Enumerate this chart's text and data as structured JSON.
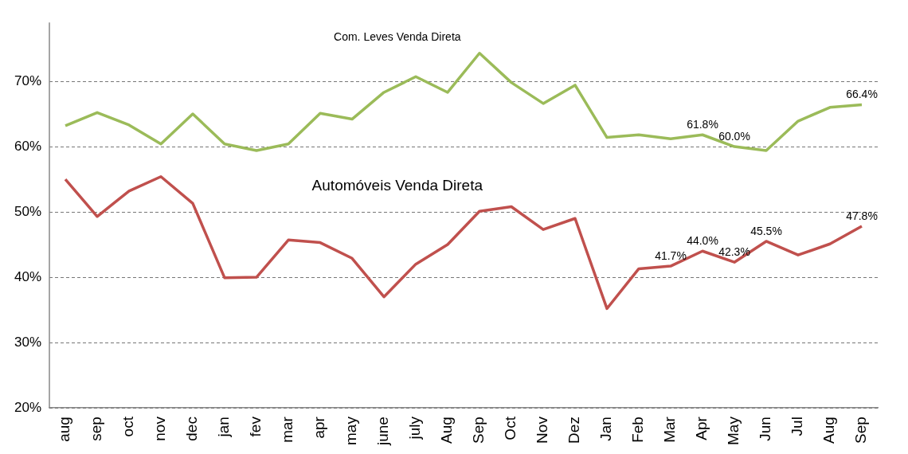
{
  "chart_data": {
    "type": "line",
    "categories": [
      "aug",
      "sep",
      "oct",
      "nov",
      "dec",
      "jan",
      "fev",
      "mar",
      "apr",
      "may",
      "june",
      "july",
      "Aug",
      "Sep",
      "Oct",
      "Nov",
      "Dez",
      "Jan",
      "Feb",
      "Mar",
      "Apr",
      "May",
      "Jun",
      "Jul",
      "Aug",
      "Sep"
    ],
    "series": [
      {
        "name": "Com. Leves Venda Direta",
        "color": "#9bbb59",
        "values": [
          63.2,
          65.2,
          63.3,
          60.4,
          65.0,
          60.4,
          59.4,
          60.4,
          65.1,
          64.2,
          68.3,
          70.7,
          68.3,
          74.3,
          69.8,
          66.6,
          69.4,
          61.4,
          61.8,
          61.2,
          61.8,
          60.0,
          59.4,
          63.9,
          66.0,
          66.4
        ],
        "value_labels": [
          null,
          null,
          null,
          null,
          null,
          null,
          null,
          null,
          null,
          null,
          null,
          null,
          null,
          null,
          null,
          null,
          null,
          null,
          null,
          null,
          "61.8%",
          "60.0%",
          null,
          null,
          null,
          "66.4%"
        ]
      },
      {
        "name": "Automóveis Venda Direta",
        "color": "#c0504d",
        "values": [
          55.0,
          49.3,
          53.2,
          55.4,
          51.3,
          39.9,
          40.0,
          45.7,
          45.3,
          42.9,
          37.0,
          42.0,
          45.0,
          50.1,
          50.8,
          47.3,
          49.0,
          35.2,
          41.3,
          41.7,
          44.0,
          42.3,
          45.5,
          43.4,
          45.1,
          47.8
        ],
        "value_labels": [
          null,
          null,
          null,
          null,
          null,
          null,
          null,
          null,
          null,
          null,
          null,
          null,
          null,
          null,
          null,
          null,
          null,
          null,
          null,
          "41.7%",
          "44.0%",
          "42.3%",
          "45.5%",
          null,
          null,
          "47.8%"
        ]
      }
    ],
    "ylim": [
      20,
      79
    ],
    "yticks": [
      {
        "value": 20,
        "label": "20%"
      },
      {
        "value": 30,
        "label": "30%"
      },
      {
        "value": 40,
        "label": "40%"
      },
      {
        "value": 50,
        "label": "50%"
      },
      {
        "value": 60,
        "label": "60%"
      },
      {
        "value": 70,
        "label": "70%"
      }
    ],
    "grid": "y",
    "legend": false,
    "marker": "none",
    "line_style": "solid"
  }
}
